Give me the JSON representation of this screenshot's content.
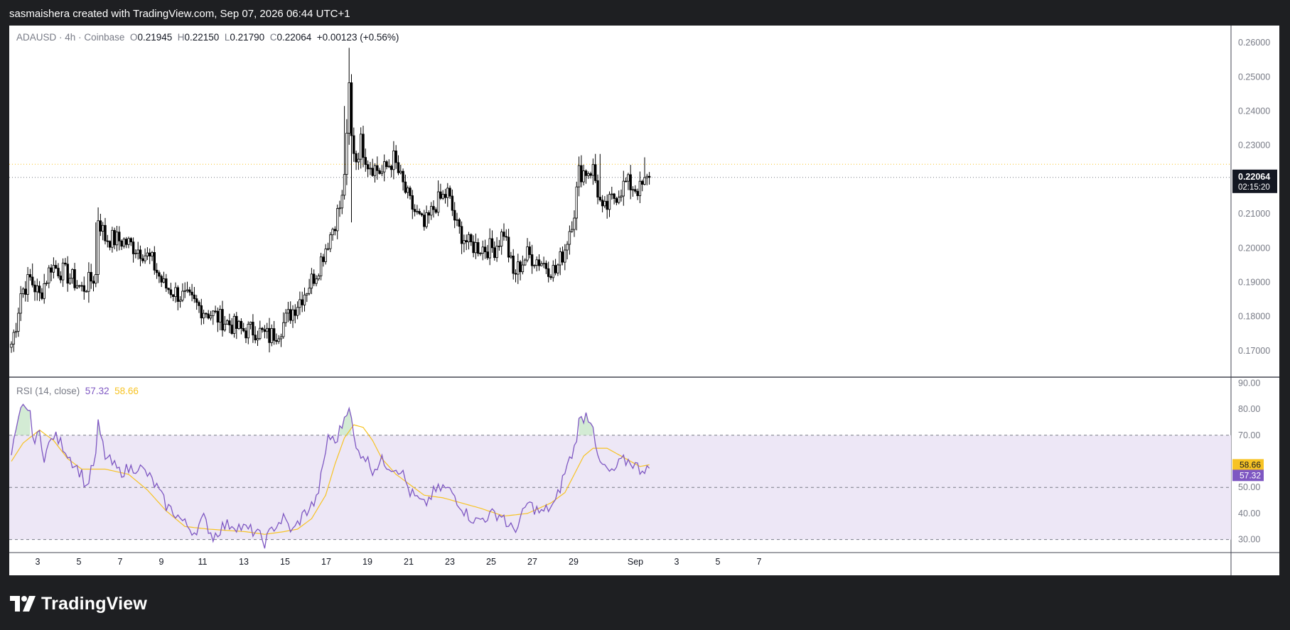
{
  "header": {
    "attribution": "sasmaishera created with TradingView.com, Sep 07, 2026 06:44 UTC+1"
  },
  "legend": {
    "symbol": "ADAUSD",
    "sep1": "·",
    "interval": "4h",
    "sep2": "·",
    "exchange": "Coinbase",
    "o_label": "O",
    "o_value": "0.21945",
    "h_label": "H",
    "h_value": "0.22150",
    "l_label": "L",
    "l_value": "0.21790",
    "c_label": "C",
    "c_value": "0.22064",
    "change": "+0.00123 (+0.56%)"
  },
  "rsi_legend": {
    "name": "RSI (14, close)",
    "rsi_value": "57.32",
    "ma_value": "58.66"
  },
  "price_badge": {
    "price": "0.22064",
    "countdown": "02:15:20"
  },
  "footer": {
    "brand": "TradingView"
  },
  "colors": {
    "candle_up": "#ffffff",
    "candle_down": "#000000",
    "candle_outline": "#000000",
    "rsi_line": "#7e57c2",
    "rsi_ma": "#f7c324",
    "rsi_band": "#ede7f6",
    "overbought_fill": "#c8e6c9",
    "grid_line": "#787b86",
    "axis_text": "#787b86",
    "page_bg": "#1e1f22",
    "chart_bg": "#ffffff"
  },
  "chart_data": [
    {
      "type": "candlestick",
      "title": "ADAUSD · 4h · Coinbase",
      "ylim": [
        0.1625,
        0.265
      ],
      "y_ticks": [
        "0.26000",
        "0.25000",
        "0.24000",
        "0.23000",
        "0.21000",
        "0.20000",
        "0.19000",
        "0.18000",
        "0.17000"
      ],
      "x_ticks": [
        "3",
        "5",
        "7",
        "9",
        "11",
        "13",
        "15",
        "17",
        "19",
        "21",
        "23",
        "25",
        "27",
        "29",
        "Sep",
        "3",
        "5",
        "7"
      ],
      "last_close": 0.22064,
      "prior_close_line": 0.2245,
      "close_anchors": [
        [
          0,
          0.172
        ],
        [
          2,
          0.178
        ],
        [
          4,
          0.187
        ],
        [
          8,
          0.191
        ],
        [
          12,
          0.186
        ],
        [
          17,
          0.195
        ],
        [
          22,
          0.193
        ],
        [
          26,
          0.191
        ],
        [
          30,
          0.188
        ],
        [
          36,
          0.192
        ],
        [
          37,
          0.209
        ],
        [
          40,
          0.203
        ],
        [
          48,
          0.202
        ],
        [
          56,
          0.199
        ],
        [
          60,
          0.196
        ],
        [
          65,
          0.189
        ],
        [
          70,
          0.187
        ],
        [
          75,
          0.185
        ],
        [
          82,
          0.182
        ],
        [
          90,
          0.179
        ],
        [
          98,
          0.176
        ],
        [
          104,
          0.176
        ],
        [
          110,
          0.174
        ],
        [
          114,
          0.176
        ],
        [
          120,
          0.182
        ],
        [
          124,
          0.186
        ],
        [
          130,
          0.193
        ],
        [
          136,
          0.204
        ],
        [
          141,
          0.214
        ],
        [
          143,
          0.231
        ],
        [
          144,
          0.247
        ],
        [
          145,
          0.232
        ],
        [
          147,
          0.226
        ],
        [
          149,
          0.231
        ],
        [
          152,
          0.225
        ],
        [
          158,
          0.222
        ],
        [
          163,
          0.226
        ],
        [
          166,
          0.22
        ],
        [
          170,
          0.213
        ],
        [
          176,
          0.206
        ],
        [
          181,
          0.213
        ],
        [
          186,
          0.216
        ],
        [
          190,
          0.206
        ],
        [
          195,
          0.201
        ],
        [
          202,
          0.2
        ],
        [
          206,
          0.2
        ],
        [
          210,
          0.205
        ],
        [
          214,
          0.192
        ],
        [
          220,
          0.198
        ],
        [
          226,
          0.196
        ],
        [
          232,
          0.193
        ],
        [
          236,
          0.2
        ],
        [
          240,
          0.211
        ],
        [
          242,
          0.222
        ],
        [
          248,
          0.223
        ],
        [
          252,
          0.21
        ],
        [
          257,
          0.215
        ],
        [
          262,
          0.219
        ],
        [
          268,
          0.217
        ],
        [
          272,
          0.22064
        ]
      ],
      "first_open": 0.171,
      "candle_count": 273,
      "wick_events": [
        [
          144,
          0.2585
        ],
        [
          144.6,
          0.2075
        ],
        [
          142,
          0.2415
        ],
        [
          251,
          0.2275
        ],
        [
          270,
          0.2265
        ],
        [
          9,
          0.1955
        ],
        [
          36,
          0.2075
        ]
      ]
    },
    {
      "type": "line",
      "title": "RSI (14, close)",
      "ylim": [
        25,
        92
      ],
      "y_ticks": [
        "90.00",
        "80.00",
        "70.00",
        "50.00",
        "40.00",
        "30.00"
      ],
      "bands": {
        "upper": 70,
        "middle": 50,
        "lower": 30
      },
      "series": [
        {
          "name": "RSI",
          "anchors": [
            [
              0,
              62
            ],
            [
              4,
              79
            ],
            [
              6,
              82
            ],
            [
              8,
              77
            ],
            [
              10,
              67
            ],
            [
              12,
              71
            ],
            [
              14,
              62
            ],
            [
              18,
              70
            ],
            [
              22,
              66
            ],
            [
              26,
              60
            ],
            [
              30,
              55
            ],
            [
              32,
              50
            ],
            [
              36,
              62
            ],
            [
              37,
              74
            ],
            [
              40,
              62
            ],
            [
              46,
              56
            ],
            [
              54,
              58
            ],
            [
              58,
              55
            ],
            [
              62,
              50
            ],
            [
              66,
              43
            ],
            [
              70,
              40
            ],
            [
              74,
              36
            ],
            [
              78,
              33
            ],
            [
              82,
              38
            ],
            [
              86,
              31
            ],
            [
              90,
              35
            ],
            [
              94,
              36
            ],
            [
              100,
              34
            ],
            [
              104,
              33
            ],
            [
              108,
              29
            ],
            [
              112,
              35
            ],
            [
              116,
              38
            ],
            [
              120,
              33
            ],
            [
              124,
              39
            ],
            [
              130,
              45
            ],
            [
              133,
              58
            ],
            [
              135,
              70
            ],
            [
              138,
              67
            ],
            [
              141,
              74
            ],
            [
              143,
              80
            ],
            [
              144,
              82
            ],
            [
              145,
              75
            ],
            [
              147,
              64
            ],
            [
              150,
              63
            ],
            [
              154,
              57
            ],
            [
              158,
              60
            ],
            [
              162,
              58
            ],
            [
              166,
              57
            ],
            [
              170,
              48
            ],
            [
              176,
              43
            ],
            [
              180,
              48
            ],
            [
              184,
              50
            ],
            [
              188,
              48
            ],
            [
              194,
              40
            ],
            [
              198,
              37
            ],
            [
              206,
              40
            ],
            [
              210,
              39
            ],
            [
              212,
              34
            ],
            [
              216,
              35
            ],
            [
              220,
              44
            ],
            [
              226,
              40
            ],
            [
              232,
              44
            ],
            [
              236,
              56
            ],
            [
              240,
              65
            ],
            [
              242,
              75
            ],
            [
              245,
              78
            ],
            [
              248,
              75
            ],
            [
              250,
              60
            ],
            [
              256,
              55
            ],
            [
              260,
              60
            ],
            [
              264,
              60
            ],
            [
              268,
              57
            ],
            [
              272,
              58
            ]
          ]
        },
        {
          "name": "RSI-based MA",
          "anchors": [
            [
              0,
              60
            ],
            [
              5,
              67
            ],
            [
              12,
              72
            ],
            [
              18,
              68
            ],
            [
              24,
              61
            ],
            [
              30,
              57
            ],
            [
              40,
              57
            ],
            [
              50,
              55
            ],
            [
              58,
              49
            ],
            [
              66,
              41
            ],
            [
              74,
              35
            ],
            [
              84,
              34
            ],
            [
              100,
              33
            ],
            [
              108,
              32
            ],
            [
              116,
              33
            ],
            [
              122,
              34
            ],
            [
              128,
              38
            ],
            [
              134,
              47
            ],
            [
              138,
              59
            ],
            [
              142,
              69
            ],
            [
              146,
              74
            ],
            [
              150,
              73
            ],
            [
              154,
              68
            ],
            [
              158,
              61
            ],
            [
              164,
              55
            ],
            [
              170,
              51
            ],
            [
              176,
              47
            ],
            [
              184,
              46
            ],
            [
              192,
              44
            ],
            [
              200,
              42
            ],
            [
              210,
              39
            ],
            [
              220,
              40
            ],
            [
              230,
              44
            ],
            [
              236,
              48
            ],
            [
              240,
              55
            ],
            [
              244,
              62
            ],
            [
              248,
              65
            ],
            [
              254,
              65
            ],
            [
              260,
              62
            ],
            [
              264,
              60
            ],
            [
              268,
              58
            ],
            [
              272,
              58.66
            ]
          ]
        }
      ]
    }
  ]
}
